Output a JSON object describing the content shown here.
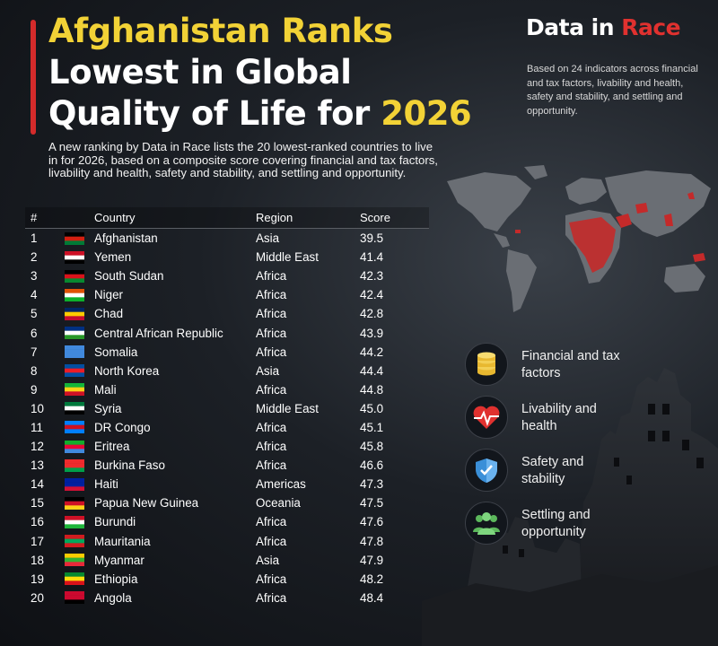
{
  "header": {
    "title_line1": "Afghanistan Ranks",
    "title_line2": "Lowest in Global",
    "title_line3_prefix": "Quality of Life for",
    "title_line3_year": "2026",
    "intro": "A new ranking by Data in Race lists the 20 lowest-ranked countries to live in for 2026, based on a composite score covering financial and tax factors, livability and health, safety and stability, and settling and opportunity."
  },
  "brand": {
    "name_part1": "Data in",
    "name_part2": "Race",
    "note": "Based on 24 indicators across financial and tax factors, livability and health, safety and stability, and settling and opportunity."
  },
  "table": {
    "headers": [
      "#",
      "Country",
      "Region",
      "Score"
    ],
    "rows": [
      {
        "rank": "1",
        "country": "Afghanistan",
        "region": "Asia",
        "score": "39.5",
        "flag": [
          "#000000",
          "#d32011",
          "#007a36"
        ]
      },
      {
        "rank": "2",
        "country": "Yemen",
        "region": "Middle East",
        "score": "41.4",
        "flag": [
          "#ce1126",
          "#ffffff",
          "#000000"
        ]
      },
      {
        "rank": "3",
        "country": "South Sudan",
        "region": "Africa",
        "score": "42.3",
        "flag": [
          "#000000",
          "#da121a",
          "#078930"
        ]
      },
      {
        "rank": "4",
        "country": "Niger",
        "region": "Africa",
        "score": "42.4",
        "flag": [
          "#e05206",
          "#ffffff",
          "#0db02b"
        ]
      },
      {
        "rank": "5",
        "country": "Chad",
        "region": "Africa",
        "score": "42.8",
        "flag": [
          "#002664",
          "#fecb00",
          "#c60c30"
        ]
      },
      {
        "rank": "6",
        "country": "Central African Republic",
        "region": "Africa",
        "score": "43.9",
        "flag": [
          "#003082",
          "#ffffff",
          "#289728"
        ]
      },
      {
        "rank": "7",
        "country": "Somalia",
        "region": "Africa",
        "score": "44.2",
        "flag": [
          "#4189dd",
          "#4189dd",
          "#4189dd"
        ]
      },
      {
        "rank": "8",
        "country": "North Korea",
        "region": "Asia",
        "score": "44.4",
        "flag": [
          "#024fa2",
          "#ed1c27",
          "#024fa2"
        ]
      },
      {
        "rank": "9",
        "country": "Mali",
        "region": "Africa",
        "score": "44.8",
        "flag": [
          "#14b53a",
          "#fcd116",
          "#ce1126"
        ]
      },
      {
        "rank": "10",
        "country": "Syria",
        "region": "Middle East",
        "score": "45.0",
        "flag": [
          "#007a3d",
          "#ffffff",
          "#000000"
        ]
      },
      {
        "rank": "11",
        "country": "DR Congo",
        "region": "Africa",
        "score": "45.1",
        "flag": [
          "#007fff",
          "#ce1021",
          "#007fff"
        ]
      },
      {
        "rank": "12",
        "country": "Eritrea",
        "region": "Africa",
        "score": "45.8",
        "flag": [
          "#12ad2b",
          "#ea0437",
          "#4189dd"
        ]
      },
      {
        "rank": "13",
        "country": "Burkina Faso",
        "region": "Africa",
        "score": "46.6",
        "flag": [
          "#ef2b2d",
          "#ef2b2d",
          "#009e49"
        ]
      },
      {
        "rank": "14",
        "country": "Haiti",
        "region": "Americas",
        "score": "47.3",
        "flag": [
          "#00209f",
          "#00209f",
          "#d21034"
        ]
      },
      {
        "rank": "15",
        "country": "Papua New Guinea",
        "region": "Oceania",
        "score": "47.5",
        "flag": [
          "#000000",
          "#ce1126",
          "#fcd116"
        ]
      },
      {
        "rank": "16",
        "country": "Burundi",
        "region": "Africa",
        "score": "47.6",
        "flag": [
          "#ce1126",
          "#ffffff",
          "#1eb53a"
        ]
      },
      {
        "rank": "17",
        "country": "Mauritania",
        "region": "Africa",
        "score": "47.8",
        "flag": [
          "#d01c1f",
          "#00a95c",
          "#d01c1f"
        ]
      },
      {
        "rank": "18",
        "country": "Myanmar",
        "region": "Asia",
        "score": "47.9",
        "flag": [
          "#fecb00",
          "#34b233",
          "#ea2839"
        ]
      },
      {
        "rank": "19",
        "country": "Ethiopia",
        "region": "Africa",
        "score": "48.2",
        "flag": [
          "#078930",
          "#fcdd09",
          "#da121a"
        ]
      },
      {
        "rank": "20",
        "country": "Angola",
        "region": "Africa",
        "score": "48.4",
        "flag": [
          "#cc092f",
          "#cc092f",
          "#000000"
        ]
      }
    ]
  },
  "factors": [
    {
      "label": "Financial and tax factors",
      "icon": "coins-icon",
      "color": "#e8b830"
    },
    {
      "label": "Livability and health",
      "icon": "heartbeat-icon",
      "color": "#e0312f"
    },
    {
      "label": "Safety and stability",
      "icon": "shield-icon",
      "color": "#3a8fd8"
    },
    {
      "label": "Settling and opportunity",
      "icon": "people-icon",
      "color": "#5cb85c"
    }
  ],
  "colors": {
    "accent_red": "#d42b2b",
    "title_yellow": "#f2d236",
    "map_land": "#6a6e74",
    "map_highlight": "#c42a2a"
  }
}
